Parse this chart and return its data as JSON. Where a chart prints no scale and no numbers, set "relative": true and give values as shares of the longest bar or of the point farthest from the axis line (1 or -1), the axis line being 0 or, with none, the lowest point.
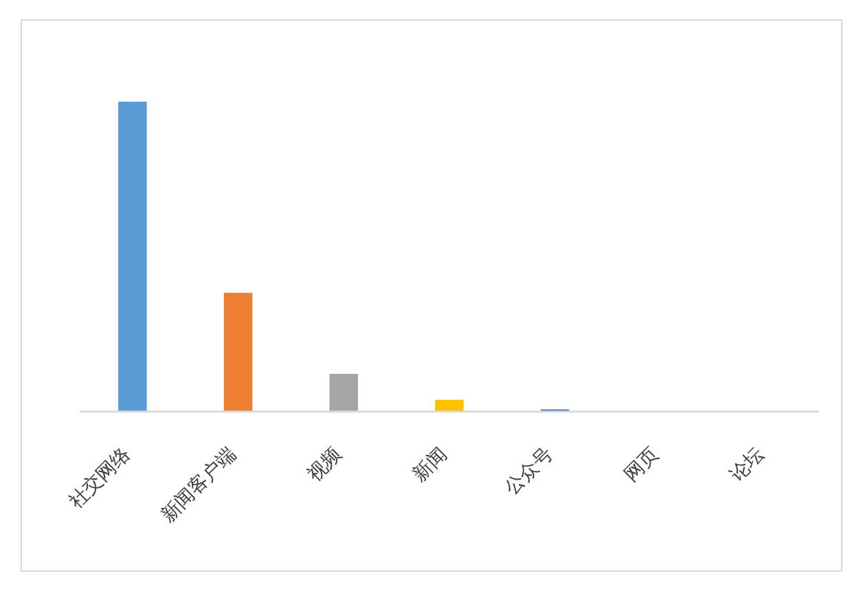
{
  "chart_data": {
    "type": "bar",
    "relative": true,
    "categories": [
      "社交网络",
      "新闻客户端",
      "视频",
      "新闻",
      "公众号",
      "网页",
      "论坛"
    ],
    "values": [
      1,
      0.382,
      0.12,
      0.036,
      0.005,
      0,
      0
    ],
    "colors": [
      "#5b9bd5",
      "#ed7d31",
      "#a5a5a5",
      "#ffc000",
      "#4472c4",
      "#70ad47",
      "#255e91"
    ]
  }
}
